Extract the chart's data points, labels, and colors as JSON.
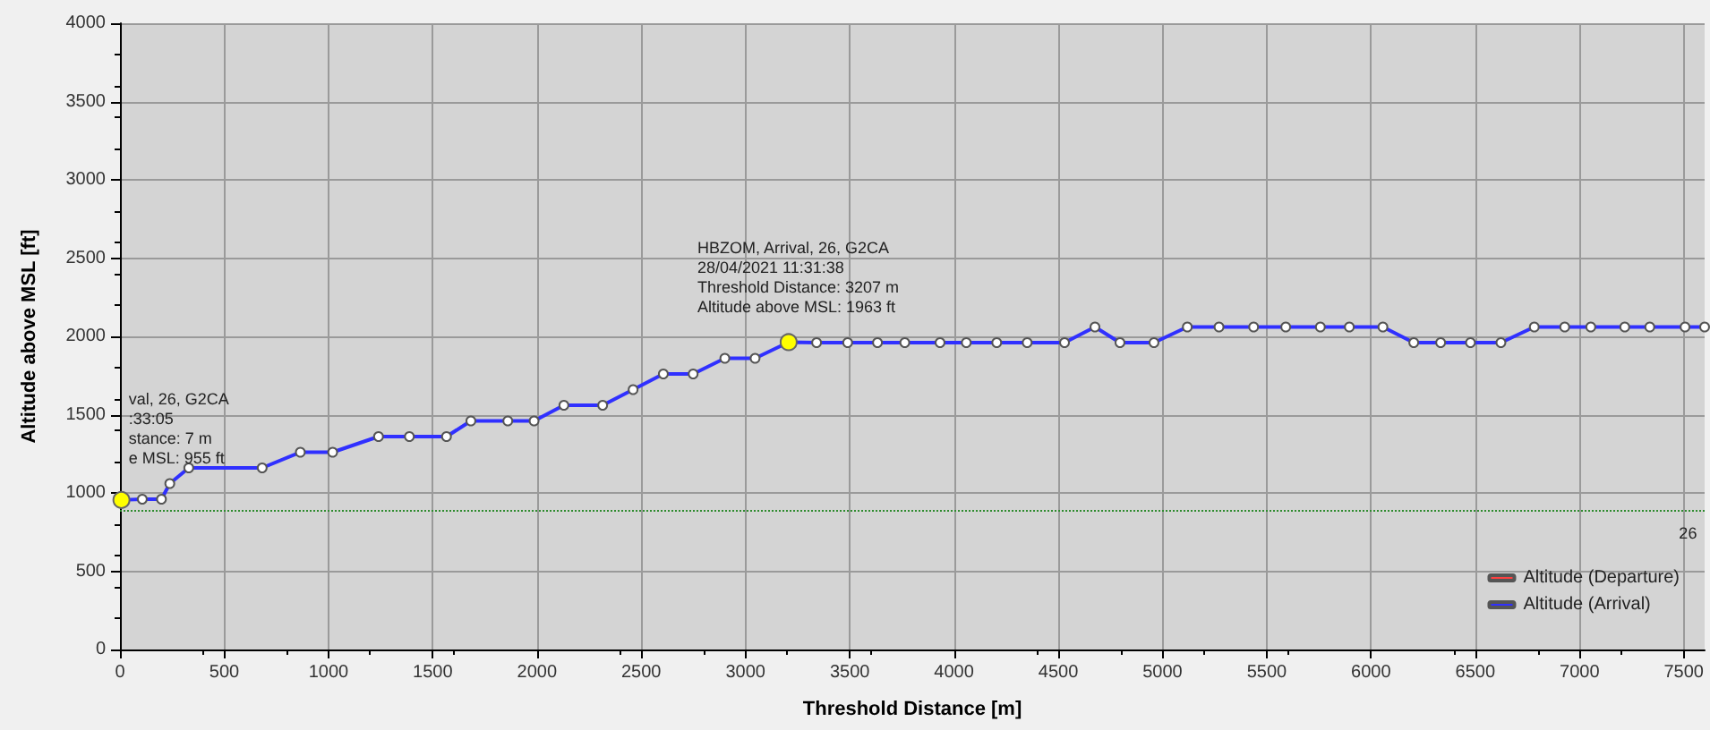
{
  "chart_data": {
    "type": "line",
    "xlabel": "Threshold Distance [m]",
    "ylabel": "Altitude above MSL [ft]",
    "xlim": [
      0,
      7600
    ],
    "xticks": [
      0,
      500,
      1000,
      1500,
      2000,
      2500,
      3000,
      3500,
      4000,
      4500,
      5000,
      5500,
      6000,
      6500,
      7000,
      7500
    ],
    "ylim": [
      0,
      4000
    ],
    "yticks": [
      0,
      500,
      1000,
      1500,
      2000,
      2500,
      3000,
      3500,
      4000
    ],
    "grid": true,
    "legend": "bottom right",
    "marker": "circle",
    "line_style": "solid",
    "series": [
      {
        "name": "Altitude (Departure)",
        "color": "#ff4040"
      },
      {
        "name": "Altitude (Arrival)",
        "color": "#3030ff",
        "x": [
          7,
          107,
          199,
          239,
          330,
          682,
          865,
          1020,
          1240,
          1388,
          1566,
          1683,
          1860,
          1986,
          2129,
          2315,
          2461,
          2606,
          2749,
          2901,
          3046,
          3207,
          3341,
          3490,
          3633,
          3764,
          3933,
          4059,
          4205,
          4351,
          4530,
          4676,
          4796,
          4959,
          5119,
          5271,
          5437,
          5591,
          5757,
          5896,
          6057,
          6205,
          6334,
          6477,
          6623,
          6783,
          6929,
          7054,
          7217,
          7337,
          7506,
          7600
        ],
        "values": [
          955,
          960,
          960,
          1060,
          1160,
          1160,
          1260,
          1260,
          1360,
          1360,
          1360,
          1460,
          1460,
          1460,
          1560,
          1560,
          1660,
          1760,
          1760,
          1860,
          1860,
          1963,
          1960,
          1960,
          1960,
          1960,
          1960,
          1960,
          1960,
          1960,
          1960,
          2060,
          1960,
          1960,
          2060,
          2060,
          2060,
          2060,
          2060,
          2060,
          2060,
          1960,
          1960,
          1960,
          1960,
          2060,
          2060,
          2060,
          2060,
          2060,
          2060,
          2060
        ]
      }
    ],
    "ref_lines": [
      {
        "axis": "y",
        "value": 883,
        "color": "#2e8b2e",
        "line_style": "dotted"
      }
    ],
    "annotations": [
      {
        "text": "val, 26, G2CA\n:33:05\nstance: 7 m\ne MSL: 955 ft",
        "x": 7,
        "y": 955
      },
      {
        "text": "HBZOM, Arrival, 26, G2CA\n28/04/2021 11:31:38\nThreshold Distance: 3207 m\nAltitude above MSL: 1963 ft",
        "x": 3207,
        "y": 1963
      },
      {
        "text": "26",
        "x": 7520,
        "y": 883
      }
    ]
  }
}
